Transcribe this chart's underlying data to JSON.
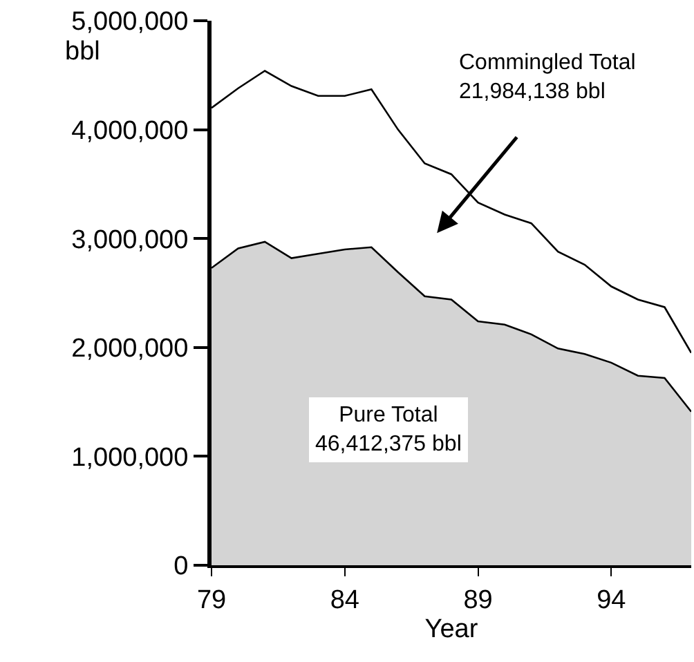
{
  "chart_data": {
    "type": "area",
    "xlabel": "Year",
    "ylabel": "bbl",
    "x": [
      79,
      80,
      81,
      82,
      83,
      84,
      85,
      86,
      87,
      88,
      89,
      90,
      91,
      92,
      93,
      94,
      95,
      96,
      97
    ],
    "series": [
      {
        "color": "#d4d4d4",
        "values": [
          2730000,
          2910000,
          2970000,
          2820000,
          2860000,
          2900000,
          2920000,
          2690000,
          2470000,
          2440000,
          2240000,
          2210000,
          2120000,
          1990000,
          1940000,
          1860000,
          1740000,
          1720000,
          1410000
        ]
      },
      {
        "type": "line",
        "color": "#000000",
        "values": [
          4200000,
          4380000,
          4540000,
          4400000,
          4310000,
          4310000,
          4370000,
          4000000,
          3690000,
          3590000,
          3330000,
          3220000,
          3140000,
          2880000,
          2760000,
          2560000,
          2440000,
          2370000,
          1950000
        ]
      }
    ],
    "annotations": [
      "Commingled Total\n21,984,138 bbl",
      "Pure Total\n46,412,375 bbl"
    ],
    "xlim": [
      79,
      97
    ],
    "xticks": [
      79,
      84,
      89,
      94
    ],
    "ylim": [
      0,
      5000000
    ],
    "yticks": [
      {
        "value": 0,
        "label": "0"
      },
      {
        "value": 1000000,
        "label": "1,000,000"
      },
      {
        "value": 2000000,
        "label": "2,000,000"
      },
      {
        "value": 3000000,
        "label": "3,000,000"
      },
      {
        "value": 4000000,
        "label": "4,000,000"
      },
      {
        "value": 5000000,
        "label": "5,000,000"
      }
    ],
    "marker": "none",
    "line_style": "solid"
  }
}
